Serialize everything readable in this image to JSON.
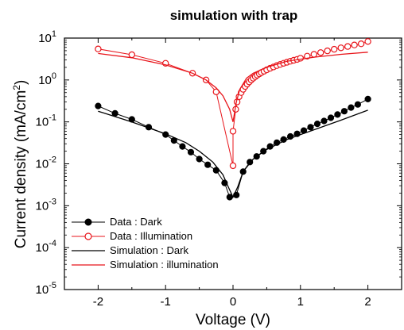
{
  "chart_data": {
    "type": "line",
    "title": "simulation with trap",
    "xlabel": "Voltage (V)",
    "ylabel_main": "Current density (mA/cm",
    "ylabel_sup": "2",
    "ylabel_end": ")",
    "xlim": [
      -2.5,
      2.5
    ],
    "ylim": [
      1e-05,
      10
    ],
    "yscale": "log",
    "grid": false,
    "legend_position": "bottom-left",
    "x_ticks": [
      -2,
      -1,
      0,
      1,
      2
    ],
    "x_tick_labels": [
      "-2",
      "-1",
      "0",
      "1",
      "2"
    ],
    "y_ticks": [
      {
        "value": 1e-05,
        "base": "10",
        "exp": "-5"
      },
      {
        "value": 0.0001,
        "base": "10",
        "exp": "-4"
      },
      {
        "value": 0.001,
        "base": "10",
        "exp": "-3"
      },
      {
        "value": 0.01,
        "base": "10",
        "exp": "-2"
      },
      {
        "value": 0.1,
        "base": "10",
        "exp": "-1"
      },
      {
        "value": 1,
        "base": "10",
        "exp": "0"
      },
      {
        "value": 10,
        "base": "10",
        "exp": "1"
      }
    ],
    "series": [
      {
        "name": "Data : Dark",
        "kind": "marker",
        "marker": "filled-circle",
        "color": "#000000",
        "x": [
          -2.0,
          -1.75,
          -1.5,
          -1.25,
          -1.0,
          -0.875,
          -0.75,
          -0.625,
          -0.5,
          -0.375,
          -0.25,
          -0.125,
          -0.05,
          0.05,
          0.15,
          0.25,
          0.35,
          0.45,
          0.55,
          0.65,
          0.75,
          0.85,
          0.95,
          1.05,
          1.15,
          1.25,
          1.35,
          1.45,
          1.55,
          1.65,
          1.75,
          1.85,
          2.0
        ],
        "y": [
          0.24,
          0.16,
          0.115,
          0.075,
          0.05,
          0.036,
          0.026,
          0.019,
          0.013,
          0.0095,
          0.007,
          0.0035,
          0.0016,
          0.0018,
          0.0065,
          0.011,
          0.015,
          0.02,
          0.026,
          0.032,
          0.038,
          0.045,
          0.052,
          0.062,
          0.075,
          0.09,
          0.105,
          0.125,
          0.15,
          0.18,
          0.22,
          0.26,
          0.35
        ]
      },
      {
        "name": "Data : Illumination",
        "kind": "marker",
        "marker": "open-circle",
        "color": "#e8151b",
        "x": [
          -2.0,
          -1.5,
          -1.0,
          -0.6,
          -0.4,
          -0.25,
          0.0,
          0.0,
          0.04,
          0.06,
          0.09,
          0.12,
          0.15,
          0.18,
          0.21,
          0.24,
          0.27,
          0.3,
          0.33,
          0.36,
          0.39,
          0.42,
          0.46,
          0.5,
          0.55,
          0.6,
          0.65,
          0.7,
          0.75,
          0.8,
          0.85,
          0.9,
          0.95,
          1.0,
          1.1,
          1.2,
          1.3,
          1.4,
          1.5,
          1.6,
          1.7,
          1.8,
          1.9,
          2.0
        ],
        "y": [
          5.5,
          4.0,
          2.5,
          1.45,
          1.0,
          0.52,
          0.009,
          0.06,
          0.2,
          0.3,
          0.4,
          0.5,
          0.6,
          0.7,
          0.8,
          0.9,
          1.0,
          1.1,
          1.2,
          1.3,
          1.4,
          1.5,
          1.62,
          1.75,
          1.9,
          2.05,
          2.2,
          2.35,
          2.5,
          2.65,
          2.8,
          2.95,
          3.1,
          3.3,
          3.7,
          4.1,
          4.5,
          4.95,
          5.4,
          5.85,
          6.3,
          6.85,
          7.3,
          8.3
        ]
      },
      {
        "name": "Simulation : Dark",
        "kind": "line",
        "color": "#000000",
        "x": [
          -2.0,
          -1.5,
          -1.0,
          -0.7,
          -0.5,
          -0.3,
          -0.15,
          -0.07,
          0.0,
          0.07,
          0.15,
          0.3,
          0.5,
          0.8,
          1.2,
          1.6,
          2.0
        ],
        "y": [
          0.18,
          0.1,
          0.052,
          0.032,
          0.02,
          0.011,
          0.0055,
          0.0028,
          0.0016,
          0.0028,
          0.0065,
          0.013,
          0.022,
          0.038,
          0.065,
          0.11,
          0.19
        ]
      },
      {
        "name": "Simulation : illumination",
        "kind": "line",
        "color": "#e8151b",
        "x": [
          -2.0,
          -1.5,
          -1.0,
          -0.6,
          -0.4,
          -0.25,
          -0.15,
          -0.05,
          0.0,
          0.05,
          0.1,
          0.2,
          0.3,
          0.5,
          0.8,
          1.2,
          1.6,
          2.0
        ],
        "y": [
          4.3,
          3.4,
          2.3,
          1.45,
          1.0,
          0.65,
          0.42,
          0.2,
          0.1,
          0.3,
          0.6,
          1.1,
          1.45,
          2.0,
          2.8,
          3.5,
          4.1,
          4.6
        ]
      }
    ]
  }
}
